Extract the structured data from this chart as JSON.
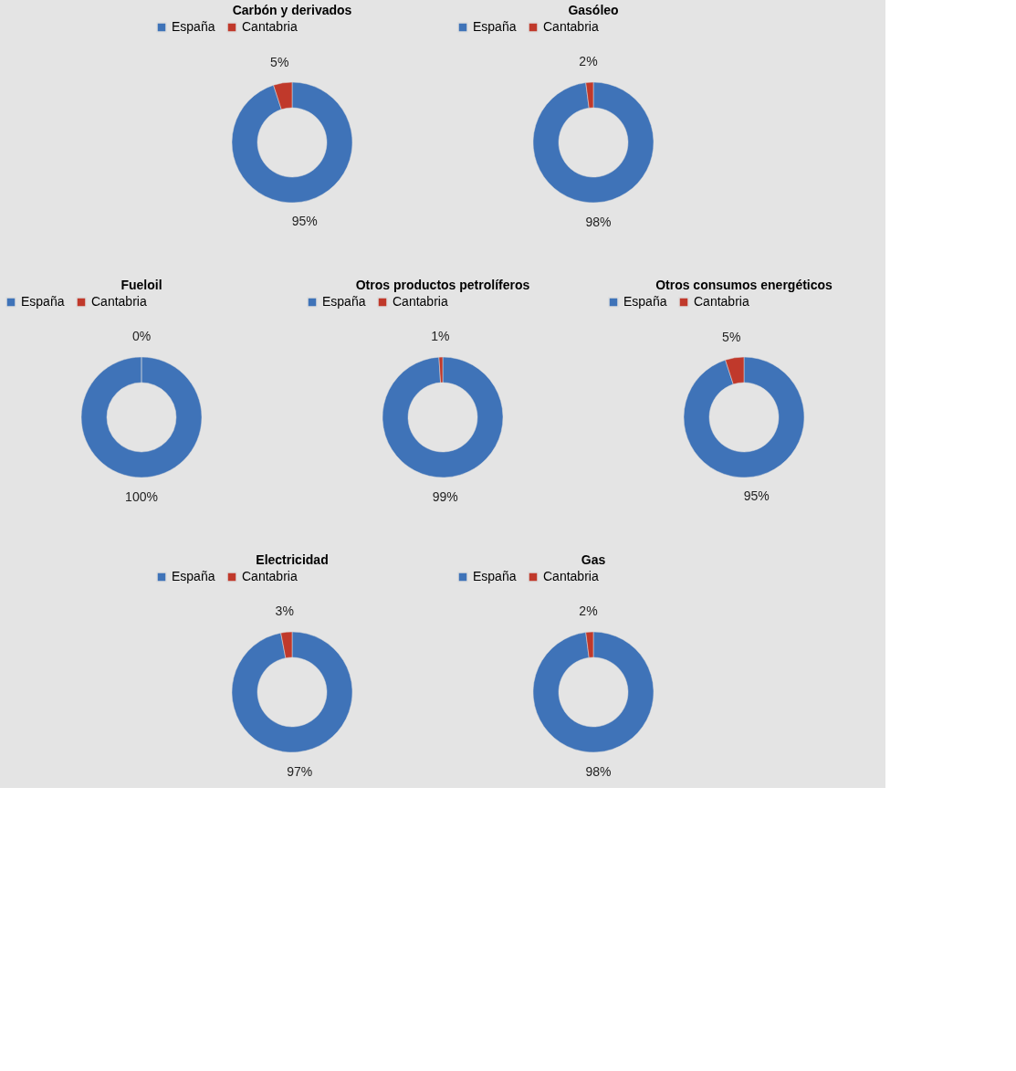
{
  "chart_data": [
    {
      "type": "donut",
      "title": "Carbón y derivados",
      "categories": [
        "España",
        "Cantabria"
      ],
      "values": [
        95,
        5
      ],
      "value_labels": [
        "95%",
        "5%"
      ],
      "colors": [
        "#3f73b8",
        "#c0392b"
      ],
      "legend": "top"
    },
    {
      "type": "donut",
      "title": "Gasóleo",
      "categories": [
        "España",
        "Cantabria"
      ],
      "values": [
        98,
        2
      ],
      "value_labels": [
        "98%",
        "2%"
      ],
      "colors": [
        "#3f73b8",
        "#c0392b"
      ],
      "legend": "top"
    },
    {
      "type": "donut",
      "title": "Fueloil",
      "categories": [
        "España",
        "Cantabria"
      ],
      "values": [
        100,
        0
      ],
      "value_labels": [
        "100%",
        "0%"
      ],
      "colors": [
        "#3f73b8",
        "#c0392b"
      ],
      "legend": "top"
    },
    {
      "type": "donut",
      "title": "Otros productos petrolíferos",
      "categories": [
        "España",
        "Cantabria"
      ],
      "values": [
        99,
        1
      ],
      "value_labels": [
        "99%",
        "1%"
      ],
      "colors": [
        "#3f73b8",
        "#c0392b"
      ],
      "legend": "top"
    },
    {
      "type": "donut",
      "title": "Otros consumos  energéticos",
      "categories": [
        "España",
        "Cantabria"
      ],
      "values": [
        95,
        5
      ],
      "value_labels": [
        "95%",
        "5%"
      ],
      "colors": [
        "#3f73b8",
        "#c0392b"
      ],
      "legend": "top"
    },
    {
      "type": "donut",
      "title": "Electricidad",
      "categories": [
        "España",
        "Cantabria"
      ],
      "values": [
        97,
        3
      ],
      "value_labels": [
        "97%",
        "3%"
      ],
      "colors": [
        "#3f73b8",
        "#c0392b"
      ],
      "legend": "top"
    },
    {
      "type": "donut",
      "title": "Gas",
      "categories": [
        "España",
        "Cantabria"
      ],
      "values": [
        98,
        2
      ],
      "value_labels": [
        "98%",
        "2%"
      ],
      "colors": [
        "#3f73b8",
        "#c0392b"
      ],
      "legend": "top"
    }
  ]
}
